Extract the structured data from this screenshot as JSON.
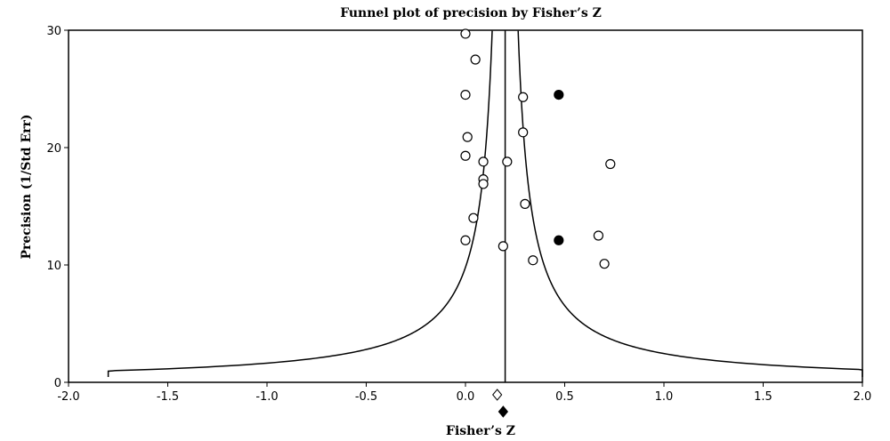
{
  "chart_data": {
    "type": "scatter",
    "title": "Funnel plot of precision by Fisher’s Z",
    "xlabel": "Fisher’s Z",
    "ylabel": "Precision (1/Std Err)",
    "xlim": [
      -2.0,
      2.0
    ],
    "ylim": [
      0,
      30
    ],
    "x_ticks": [
      "-2.0",
      "-1.5",
      "-1.0",
      "-0.5",
      "0.0",
      "0.5",
      "1.0",
      "1.5",
      "2.0"
    ],
    "y_ticks": [
      "0",
      "10",
      "20",
      "30"
    ],
    "grid": false,
    "pooled_estimate": 0.2,
    "observed_studies": [
      {
        "x": 0.0,
        "y": 29.7
      },
      {
        "x": 0.05,
        "y": 27.5
      },
      {
        "x": 0.0,
        "y": 24.5
      },
      {
        "x": 0.29,
        "y": 24.3
      },
      {
        "x": 0.29,
        "y": 21.3
      },
      {
        "x": 0.01,
        "y": 20.9
      },
      {
        "x": 0.0,
        "y": 19.3
      },
      {
        "x": 0.09,
        "y": 18.8
      },
      {
        "x": 0.21,
        "y": 18.8
      },
      {
        "x": 0.73,
        "y": 18.6
      },
      {
        "x": 0.09,
        "y": 17.3
      },
      {
        "x": 0.09,
        "y": 16.9
      },
      {
        "x": 0.3,
        "y": 15.2
      },
      {
        "x": 0.04,
        "y": 14.0
      },
      {
        "x": 0.67,
        "y": 12.5
      },
      {
        "x": 0.0,
        "y": 12.1
      },
      {
        "x": 0.19,
        "y": 11.6
      },
      {
        "x": 0.34,
        "y": 10.4
      },
      {
        "x": 0.7,
        "y": 10.1
      }
    ],
    "imputed_studies": [
      {
        "x": 0.47,
        "y": 24.5
      },
      {
        "x": 0.47,
        "y": 12.1
      }
    ],
    "observed_summary_x": 0.16,
    "adjusted_summary_x": 0.19
  }
}
